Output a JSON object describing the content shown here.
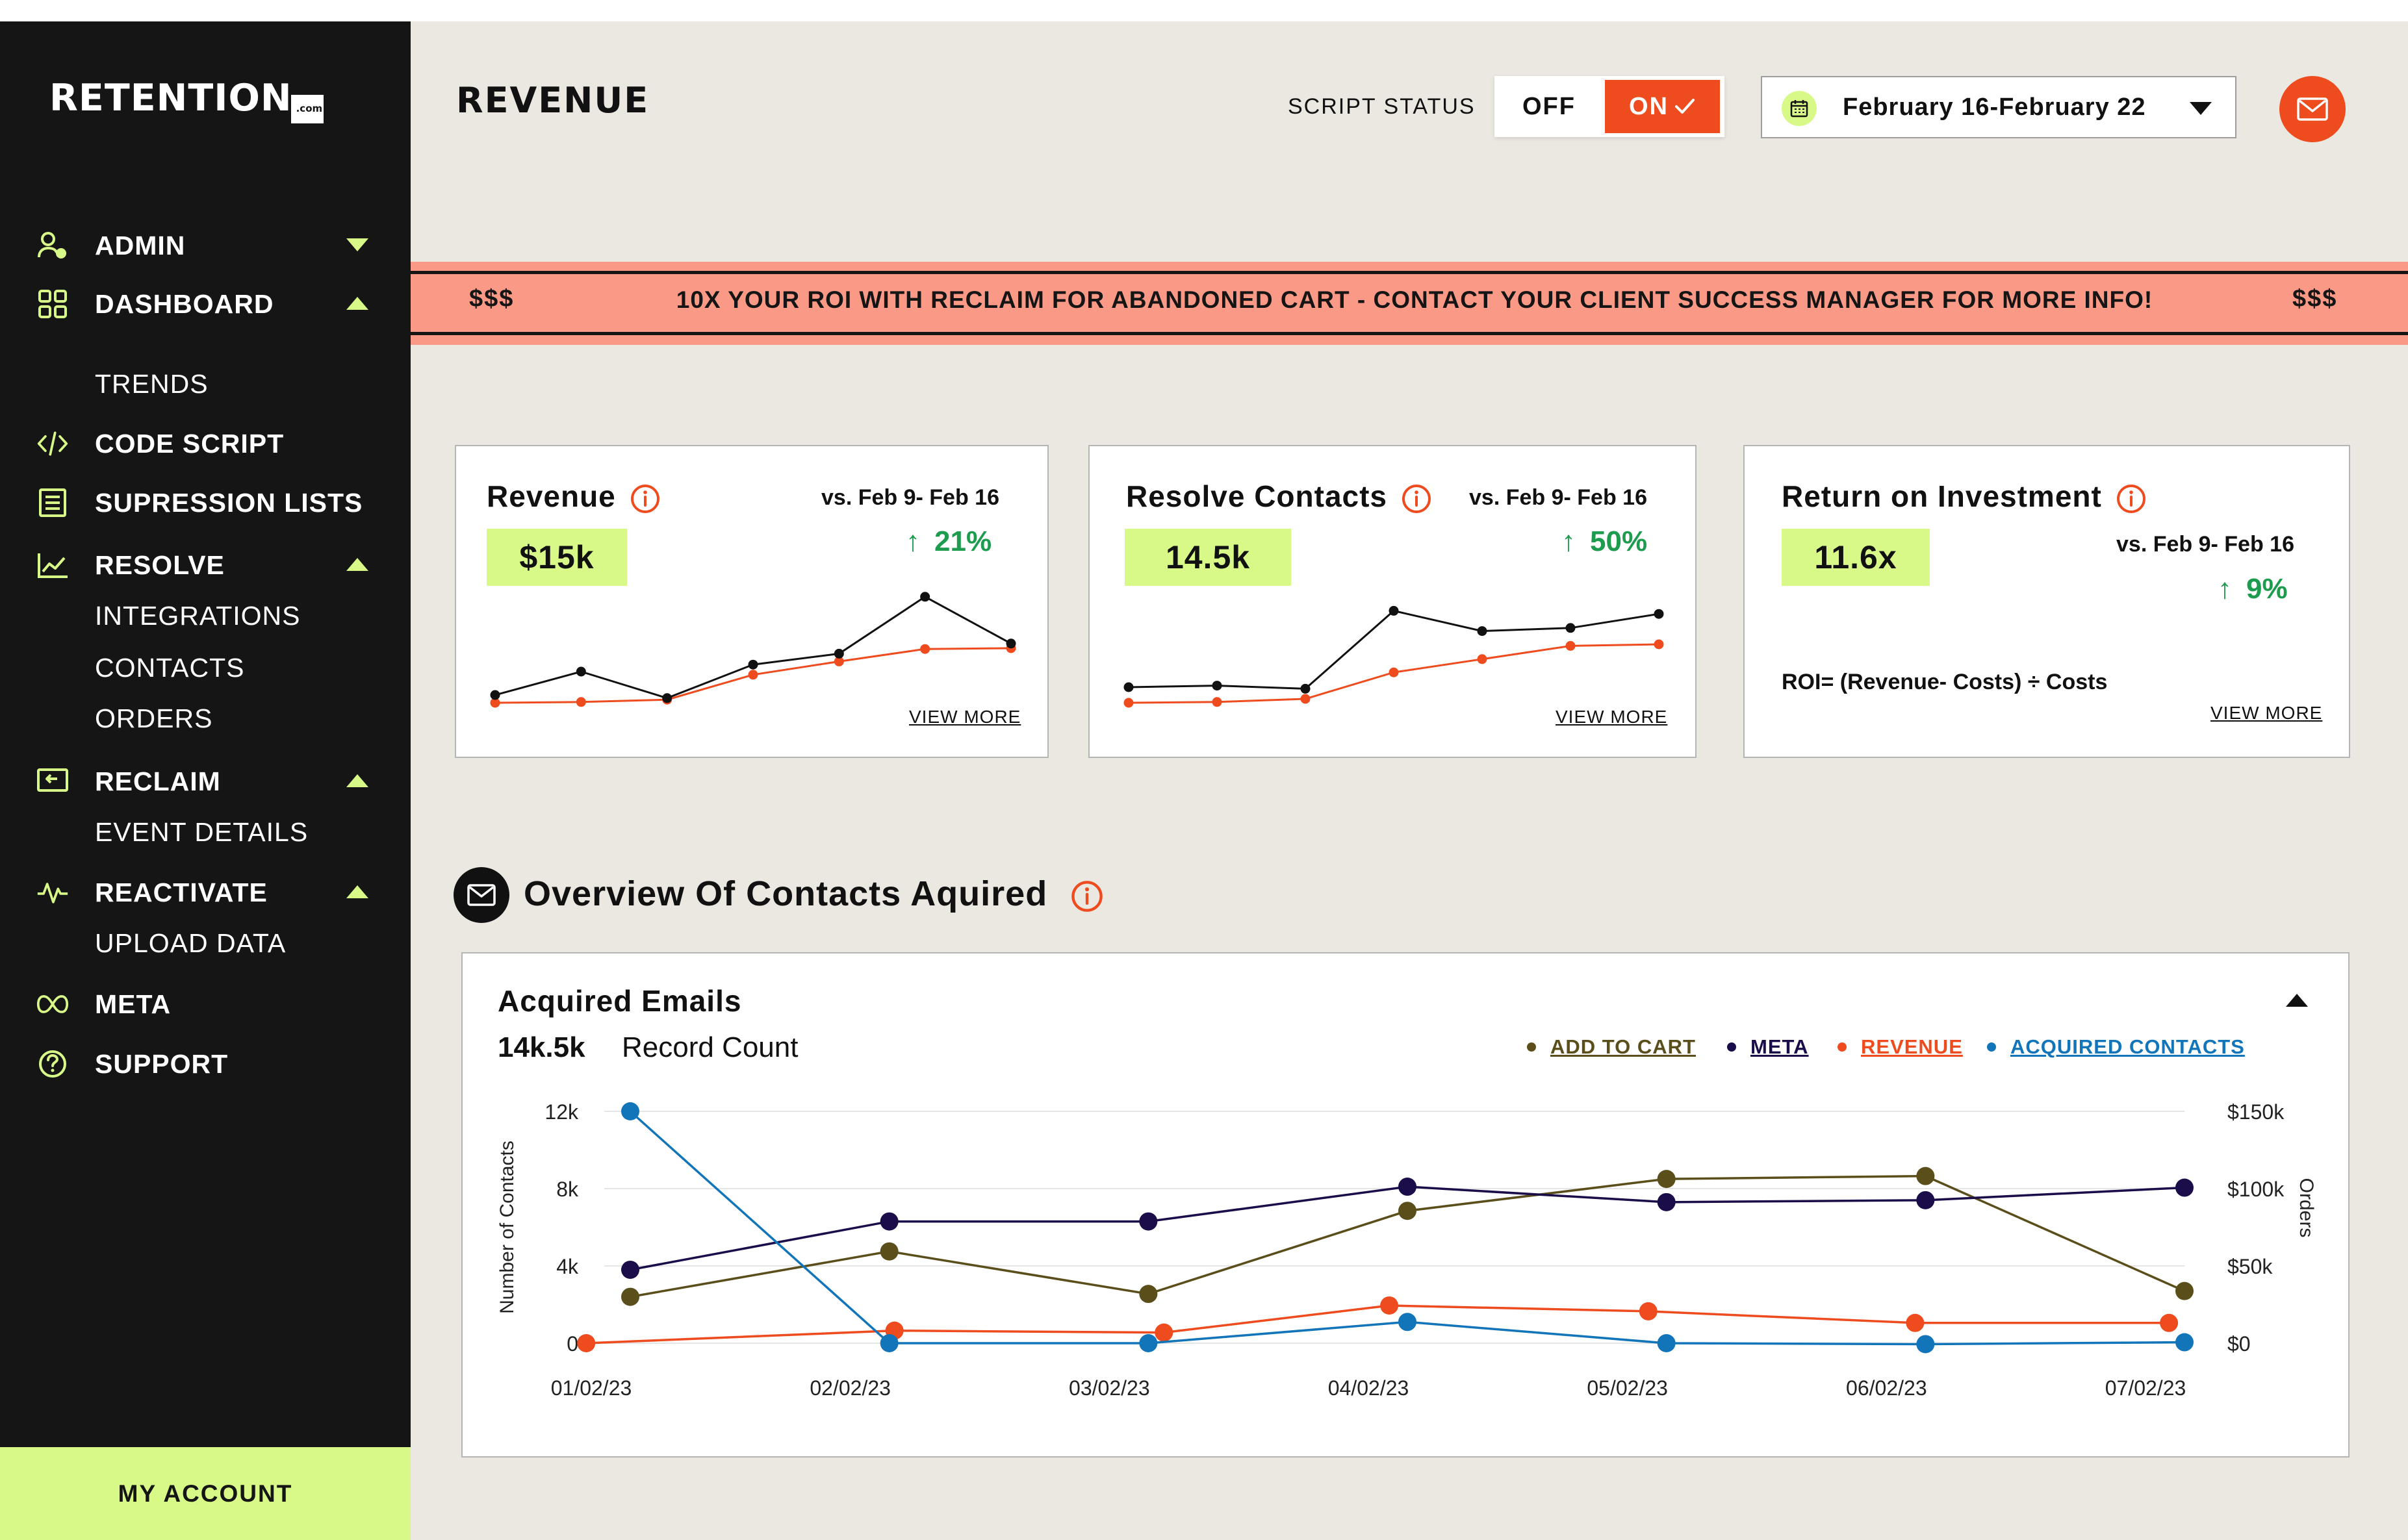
{
  "brand": {
    "logo_text": "RETENTION",
    "logo_suffix": ".com"
  },
  "sidebar": {
    "items": [
      {
        "label": "ADMIN",
        "icon": "admin-user-icon"
      },
      {
        "label": "DASHBOARD",
        "icon": "dashboard-grid-icon"
      },
      {
        "label": "TRENDS"
      },
      {
        "label": "CODE SCRIPT",
        "icon": "code-icon"
      },
      {
        "label": "SUPRESSION LISTS",
        "icon": "list-icon"
      },
      {
        "label": "RESOLVE",
        "icon": "line-chart-icon"
      },
      {
        "label": "INTEGRATIONS"
      },
      {
        "label": "CONTACTS"
      },
      {
        "label": "ORDERS"
      },
      {
        "label": "RECLAIM",
        "icon": "reclaim-icon"
      },
      {
        "label": "EVENT DETAILS"
      },
      {
        "label": "REACTIVATE",
        "icon": "pulse-icon"
      },
      {
        "label": "UPLOAD DATA"
      },
      {
        "label": "META",
        "icon": "meta-infinity-icon"
      },
      {
        "label": "SUPPORT",
        "icon": "question-icon"
      }
    ],
    "account_label": "MY ACCOUNT"
  },
  "header": {
    "title": "REVENUE",
    "script_status_label": "SCRIPT STATUS",
    "toggle_off": "OFF",
    "toggle_on": "ON",
    "date_range": "February 16-February 22"
  },
  "banner": {
    "left": "$$$",
    "message": "10X YOUR ROI WITH RECLAIM FOR ABANDONED CART - CONTACT YOUR CLIENT SUCCESS MANAGER FOR MORE INFO!",
    "right": "$$$"
  },
  "kpis": [
    {
      "title": "Revenue",
      "compare": "vs. Feb 9- Feb 16",
      "value": "$15k",
      "change": "21%",
      "more": "VIEW MORE"
    },
    {
      "title": "Resolve Contacts",
      "compare": "vs. Feb 9- Feb 16",
      "value": "14.5k",
      "change": "50%",
      "more": "VIEW MORE"
    },
    {
      "title": "Return on Investment",
      "compare": "vs. Feb 9- Feb 16",
      "value": "11.6x",
      "change": "9%",
      "formula": "ROI= (Revenue- Costs) ÷ Costs",
      "more": "VIEW MORE"
    }
  ],
  "sparklines": [
    {
      "black": [
        1,
        4,
        0.6,
        4.9,
        6.3,
        13.6,
        7.6
      ],
      "orange": [
        0,
        0.1,
        0.4,
        3.6,
        5.3,
        6.9,
        7
      ]
    },
    {
      "black": [
        2,
        2.2,
        1.8,
        11.8,
        9.2,
        9.6,
        11.4
      ],
      "orange": [
        0,
        0.1,
        0.5,
        3.9,
        5.6,
        7.3,
        7.5
      ]
    }
  ],
  "overview": {
    "title": "Overview Of Contacts Aquired"
  },
  "chart": {
    "title": "Acquired Emails",
    "count": "14k.5k",
    "count_label": "Record Count"
  },
  "chart_data": {
    "type": "line",
    "categories": [
      "01/02/23",
      "02/02/23",
      "03/02/23",
      "04/02/23",
      "05/02/23",
      "06/02/23",
      "07/02/23"
    ],
    "ylabel": "Number of Contacts",
    "y2label": "Orders",
    "yticks": [
      "12k",
      "8k",
      "4k",
      "0"
    ],
    "y2ticks": [
      "$150k",
      "$100k",
      "$50k",
      "$0"
    ],
    "ylim": [
      0,
      12000
    ],
    "grid": true,
    "legend_position": "top-right",
    "series": [
      {
        "name": "ADD TO CART",
        "color": "#5a4e1b",
        "values": [
          2400,
          4750,
          2550,
          6850,
          8500,
          8650,
          2700
        ]
      },
      {
        "name": "META",
        "color": "#1a0d4a",
        "values": [
          3800,
          6300,
          6300,
          8100,
          7300,
          7400,
          8050
        ]
      },
      {
        "name": "REVENUE",
        "color": "#ee4b1f",
        "values": [
          0,
          650,
          550,
          1950,
          1650,
          1050,
          1050
        ],
        "x_offsets": [
          -0.17,
          0.02,
          0.06,
          -0.07,
          -0.07,
          -0.04,
          -0.06
        ]
      },
      {
        "name": "ACQUIRED CONTACTS",
        "color": "#1275b9",
        "values": [
          12000,
          0,
          0,
          1100,
          0,
          -50,
          50
        ]
      }
    ]
  },
  "colors": {
    "accent_lime": "#d8f988",
    "accent_orange": "#ee4b1f",
    "banner_pink": "#fa9985",
    "positive_green": "#1d9b4e",
    "sidebar_bg": "#151515",
    "page_bg": "#ebe7e1"
  }
}
